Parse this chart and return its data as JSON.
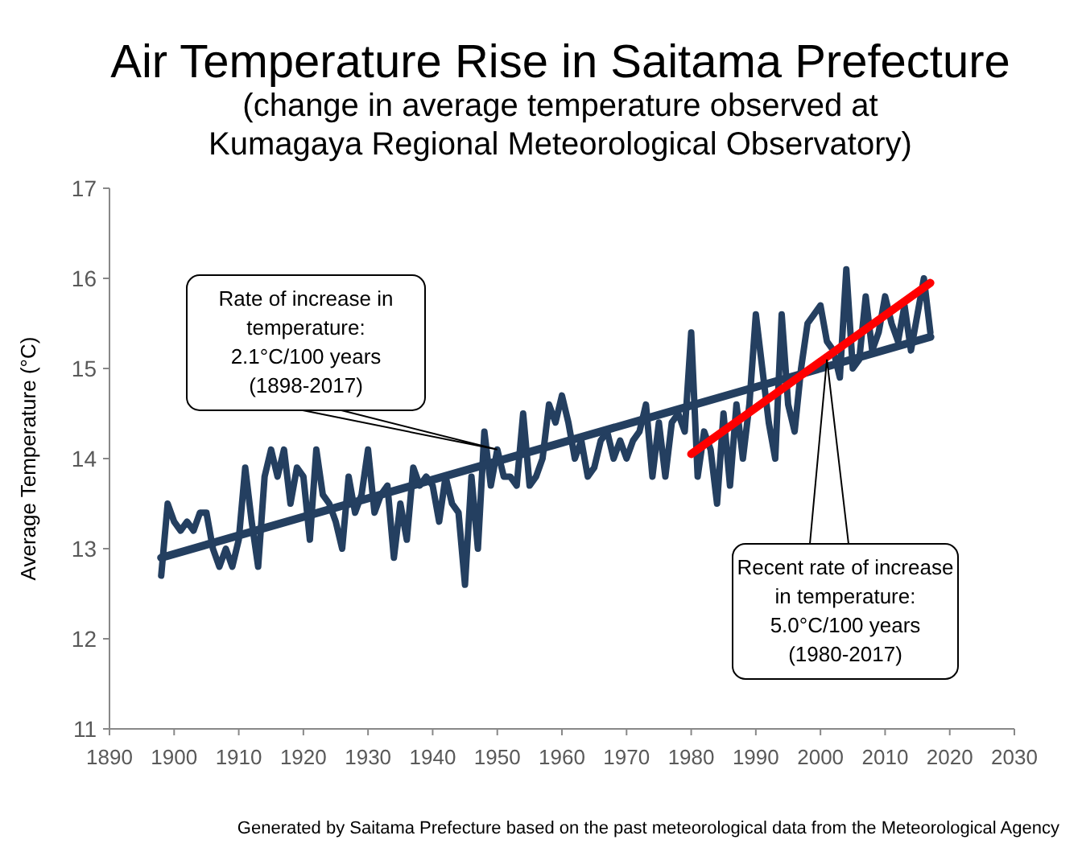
{
  "chart_data": {
    "type": "line",
    "title": "Air Temperature Rise in Saitama Prefecture",
    "subtitle": "(change in average temperature observed at\nKumagaya Regional Meteorological Observatory)",
    "ylabel": "Average Temperature (°C)",
    "x": [
      1898,
      1899,
      1900,
      1901,
      1902,
      1903,
      1904,
      1905,
      1906,
      1907,
      1908,
      1909,
      1910,
      1911,
      1912,
      1913,
      1914,
      1915,
      1916,
      1917,
      1918,
      1919,
      1920,
      1921,
      1922,
      1923,
      1924,
      1925,
      1926,
      1927,
      1928,
      1929,
      1930,
      1931,
      1932,
      1933,
      1934,
      1935,
      1936,
      1937,
      1938,
      1939,
      1940,
      1941,
      1942,
      1943,
      1944,
      1945,
      1946,
      1947,
      1948,
      1949,
      1950,
      1951,
      1952,
      1953,
      1954,
      1955,
      1956,
      1957,
      1958,
      1959,
      1960,
      1961,
      1962,
      1963,
      1964,
      1965,
      1966,
      1967,
      1968,
      1969,
      1970,
      1971,
      1972,
      1973,
      1974,
      1975,
      1976,
      1977,
      1978,
      1979,
      1980,
      1981,
      1982,
      1983,
      1984,
      1985,
      1986,
      1987,
      1988,
      1989,
      1990,
      1991,
      1992,
      1993,
      1994,
      1995,
      1996,
      1997,
      1998,
      1999,
      2000,
      2001,
      2002,
      2003,
      2004,
      2005,
      2006,
      2007,
      2008,
      2009,
      2010,
      2011,
      2012,
      2013,
      2014,
      2015,
      2016,
      2017
    ],
    "series": [
      {
        "color": "#243f60",
        "values": [
          12.7,
          13.5,
          13.3,
          13.2,
          13.3,
          13.2,
          13.4,
          13.4,
          13.0,
          12.8,
          13.0,
          12.8,
          13.1,
          13.9,
          13.3,
          12.8,
          13.8,
          14.1,
          13.8,
          14.1,
          13.5,
          13.9,
          13.8,
          13.1,
          14.1,
          13.6,
          13.5,
          13.3,
          13.0,
          13.8,
          13.4,
          13.6,
          14.1,
          13.4,
          13.6,
          13.7,
          12.9,
          13.5,
          13.1,
          13.9,
          13.7,
          13.8,
          13.7,
          13.3,
          13.8,
          13.5,
          13.4,
          12.6,
          13.8,
          13.0,
          14.3,
          13.7,
          14.1,
          13.8,
          13.8,
          13.7,
          14.5,
          13.7,
          13.8,
          14.0,
          14.6,
          14.4,
          14.7,
          14.4,
          14.0,
          14.2,
          13.8,
          13.9,
          14.2,
          14.3,
          14.0,
          14.2,
          14.0,
          14.2,
          14.3,
          14.6,
          13.8,
          14.4,
          13.8,
          14.4,
          14.5,
          14.3,
          15.4,
          13.8,
          14.3,
          14.1,
          13.5,
          14.5,
          13.7,
          14.6,
          14.0,
          14.6,
          15.6,
          15.0,
          14.4,
          14.0,
          15.6,
          14.6,
          14.3,
          15.0,
          15.5,
          15.6,
          15.7,
          15.3,
          15.2,
          14.9,
          16.1,
          15.0,
          15.1,
          15.8,
          15.2,
          15.4,
          15.8,
          15.5,
          15.3,
          15.7,
          15.2,
          15.6,
          16.0,
          15.4
        ]
      },
      {
        "color": "#243f60",
        "x": [
          1898,
          2017
        ],
        "values": [
          12.9,
          15.35
        ]
      },
      {
        "color": "#ff0000",
        "x": [
          1980,
          2017
        ],
        "values": [
          14.05,
          15.95
        ]
      }
    ],
    "xlim": [
      1890,
      2030
    ],
    "xticks": [
      1890,
      1900,
      1910,
      1920,
      1930,
      1940,
      1950,
      1960,
      1970,
      1980,
      1990,
      2000,
      2010,
      2020,
      2030
    ],
    "ylim": [
      11,
      17
    ],
    "yticks": [
      11,
      12,
      13,
      14,
      15,
      16,
      17
    ],
    "grid": false,
    "marker": "none",
    "line_style": "solid",
    "annotations": [
      {
        "text": "Rate of increase in\ntemperature:\n2.1°C/100 years\n(1898-2017)",
        "x": 1950,
        "y": 14.1
      },
      {
        "text": "Recent rate of increase\nin temperature:\n5.0°C/100 years\n(1980-2017)",
        "x": 2001,
        "y": 15.1
      },
      "Generated by Saitama Prefecture based on the past meteorological data from the Meteorological Agency"
    ]
  }
}
